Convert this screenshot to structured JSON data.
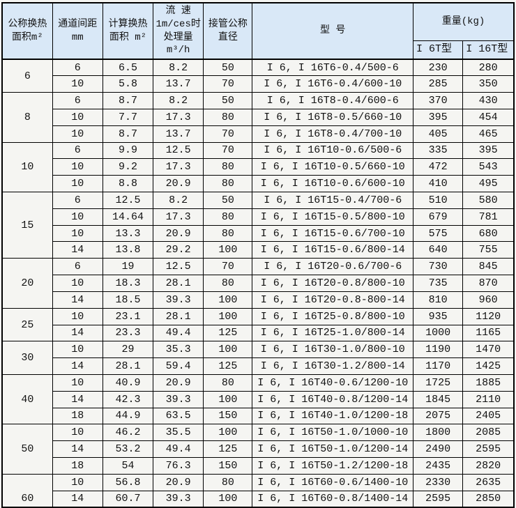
{
  "colors": {
    "header_bg": "#d9e8f7",
    "cell_bg": "#f5f5f2",
    "border": "#000000",
    "text": "#111111"
  },
  "table": {
    "header": {
      "nominal_area": [
        "公称换热",
        "面积m²"
      ],
      "channel_spacing": [
        "通道间距",
        "mm"
      ],
      "calc_area": [
        "计算换热",
        "面积 m²"
      ],
      "flow": [
        "流 速",
        "1m/ces时",
        "处理量",
        "m³/h"
      ],
      "pipe_diameter": [
        "接管公称",
        "直径"
      ],
      "model": "型 号",
      "weight_group": "重量(kg)",
      "weight_i6t": "I 6T型",
      "weight_i16t": "I 16T型"
    },
    "groups": [
      {
        "label": "6",
        "rows": [
          {
            "spacing": "6",
            "calc_area": "6.5",
            "flow": "8.2",
            "diameter": "50",
            "model": "I 6, I 16T6-0.4/500-6",
            "weight_i6t": "230",
            "weight_i16t": "280"
          },
          {
            "spacing": "10",
            "calc_area": "5.8",
            "flow": "13.7",
            "diameter": "70",
            "model": "I 6, I 16T6-0.4/600-10",
            "weight_i6t": "285",
            "weight_i16t": "350"
          }
        ]
      },
      {
        "label": "8",
        "rows": [
          {
            "spacing": "6",
            "calc_area": "8.7",
            "flow": "8.2",
            "diameter": "50",
            "model": "I 6, I 16T8-0.4/600-6",
            "weight_i6t": "370",
            "weight_i16t": "430"
          },
          {
            "spacing": "10",
            "calc_area": "7.7",
            "flow": "17.3",
            "diameter": "80",
            "model": "I 6, I 16T8-0.5/660-10",
            "weight_i6t": "395",
            "weight_i16t": "454"
          },
          {
            "spacing": "10",
            "calc_area": "8.7",
            "flow": "13.7",
            "diameter": "70",
            "model": "I 6, I 16T8-0.4/700-10",
            "weight_i6t": "405",
            "weight_i16t": "465"
          }
        ]
      },
      {
        "label": "10",
        "rows": [
          {
            "spacing": "6",
            "calc_area": "9.9",
            "flow": "12.5",
            "diameter": "70",
            "model": "I 6, I 16T10-0.6/500-6",
            "weight_i6t": "335",
            "weight_i16t": "395"
          },
          {
            "spacing": "10",
            "calc_area": "9.2",
            "flow": "17.3",
            "diameter": "80",
            "model": "I 6, I 16T10-0.5/660-10",
            "weight_i6t": "472",
            "weight_i16t": "543"
          },
          {
            "spacing": "10",
            "calc_area": "8.8",
            "flow": "20.9",
            "diameter": "80",
            "model": "I 6, I 16T10-0.6/600-10",
            "weight_i6t": "410",
            "weight_i16t": "495"
          }
        ]
      },
      {
        "label": "15",
        "rows": [
          {
            "spacing": "6",
            "calc_area": "12.5",
            "flow": "8.2",
            "diameter": "50",
            "model": "I 6, I 16T15-0.4/700-6",
            "weight_i6t": "510",
            "weight_i16t": "580"
          },
          {
            "spacing": "10",
            "calc_area": "14.64",
            "flow": "17.3",
            "diameter": "80",
            "model": "I 6, I 16T15-0.5/800-10",
            "weight_i6t": "679",
            "weight_i16t": "781"
          },
          {
            "spacing": "10",
            "calc_area": "13.3",
            "flow": "20.9",
            "diameter": "80",
            "model": "I 6, I 16T15-0.6/700-10",
            "weight_i6t": "575",
            "weight_i16t": "680"
          },
          {
            "spacing": "14",
            "calc_area": "13.8",
            "flow": "29.2",
            "diameter": "100",
            "model": "I 6, I 16T15-0.6/800-14",
            "weight_i6t": "640",
            "weight_i16t": "755"
          }
        ]
      },
      {
        "label": "20",
        "rows": [
          {
            "spacing": "6",
            "calc_area": "19",
            "flow": "12.5",
            "diameter": "70",
            "model": "I 6, I 16T20-0.6/700-6",
            "weight_i6t": "730",
            "weight_i16t": "845"
          },
          {
            "spacing": "10",
            "calc_area": "18.3",
            "flow": "28.1",
            "diameter": "80",
            "model": "I 6, I 16T20-0.8/800-10",
            "weight_i6t": "735",
            "weight_i16t": "870"
          },
          {
            "spacing": "14",
            "calc_area": "18.5",
            "flow": "39.3",
            "diameter": "100",
            "model": "I 6, I 16T20-0.8-800-14",
            "weight_i6t": "810",
            "weight_i16t": "960"
          }
        ]
      },
      {
        "label": "25",
        "rows": [
          {
            "spacing": "10",
            "calc_area": "23.1",
            "flow": "28.1",
            "diameter": "100",
            "model": "I 6, I 16T25-0.8/800-10",
            "weight_i6t": "935",
            "weight_i16t": "1120"
          },
          {
            "spacing": "14",
            "calc_area": "23.3",
            "flow": "49.4",
            "diameter": "125",
            "model": "I 6, I 16T25-1.0/800-14",
            "weight_i6t": "1000",
            "weight_i16t": "1165"
          }
        ]
      },
      {
        "label": "30",
        "rows": [
          {
            "spacing": "10",
            "calc_area": "29",
            "flow": "35.3",
            "diameter": "100",
            "model": "I 6, I 16T30-1.0/800-10",
            "weight_i6t": "1190",
            "weight_i16t": "1470"
          },
          {
            "spacing": "14",
            "calc_area": "28.1",
            "flow": "59.4",
            "diameter": "125",
            "model": "I 6, I 16T30-1.2/800-14",
            "weight_i6t": "1170",
            "weight_i16t": "1425"
          }
        ]
      },
      {
        "label": "40",
        "rows": [
          {
            "spacing": "10",
            "calc_area": "40.9",
            "flow": "20.9",
            "diameter": "80",
            "model": "I 6, I 16T40-0.6/1200-10",
            "weight_i6t": "1725",
            "weight_i16t": "1885"
          },
          {
            "spacing": "14",
            "calc_area": "42.3",
            "flow": "39.3",
            "diameter": "100",
            "model": "I 6, I 16T40-0.8/1200-14",
            "weight_i6t": "1845",
            "weight_i16t": "2110"
          },
          {
            "spacing": "18",
            "calc_area": "44.9",
            "flow": "63.5",
            "diameter": "150",
            "model": "I 6, I 16T40-1.0/1200-18",
            "weight_i6t": "2075",
            "weight_i16t": "2405"
          }
        ]
      },
      {
        "label": "50",
        "rows": [
          {
            "spacing": "10",
            "calc_area": "46.2",
            "flow": "35.5",
            "diameter": "100",
            "model": "I 6, I 16T50-1.0/1000-10",
            "weight_i6t": "1800",
            "weight_i16t": "2085"
          },
          {
            "spacing": "14",
            "calc_area": "53.2",
            "flow": "49.4",
            "diameter": "125",
            "model": "I 6, I 16T50-1.0/1200-14",
            "weight_i6t": "2490",
            "weight_i16t": "2595"
          },
          {
            "spacing": "18",
            "calc_area": "54",
            "flow": "76.3",
            "diameter": "150",
            "model": "I 6, I 16T50-1.2/1200-18",
            "weight_i6t": "2435",
            "weight_i16t": "2820"
          }
        ]
      },
      {
        "label": "60",
        "rows": [
          {
            "spacing": "10",
            "calc_area": "56.8",
            "flow": "20.9",
            "diameter": "80",
            "model": "I 6, I 16T60-0.6/1400-10",
            "weight_i6t": "2330",
            "weight_i16t": "2635"
          },
          {
            "spacing": "14",
            "calc_area": "60.7",
            "flow": "39.3",
            "diameter": "100",
            "model": "I 6, I 16T60-0.8/1400-14",
            "weight_i6t": "2595",
            "weight_i16t": "2850"
          }
        ]
      }
    ]
  }
}
